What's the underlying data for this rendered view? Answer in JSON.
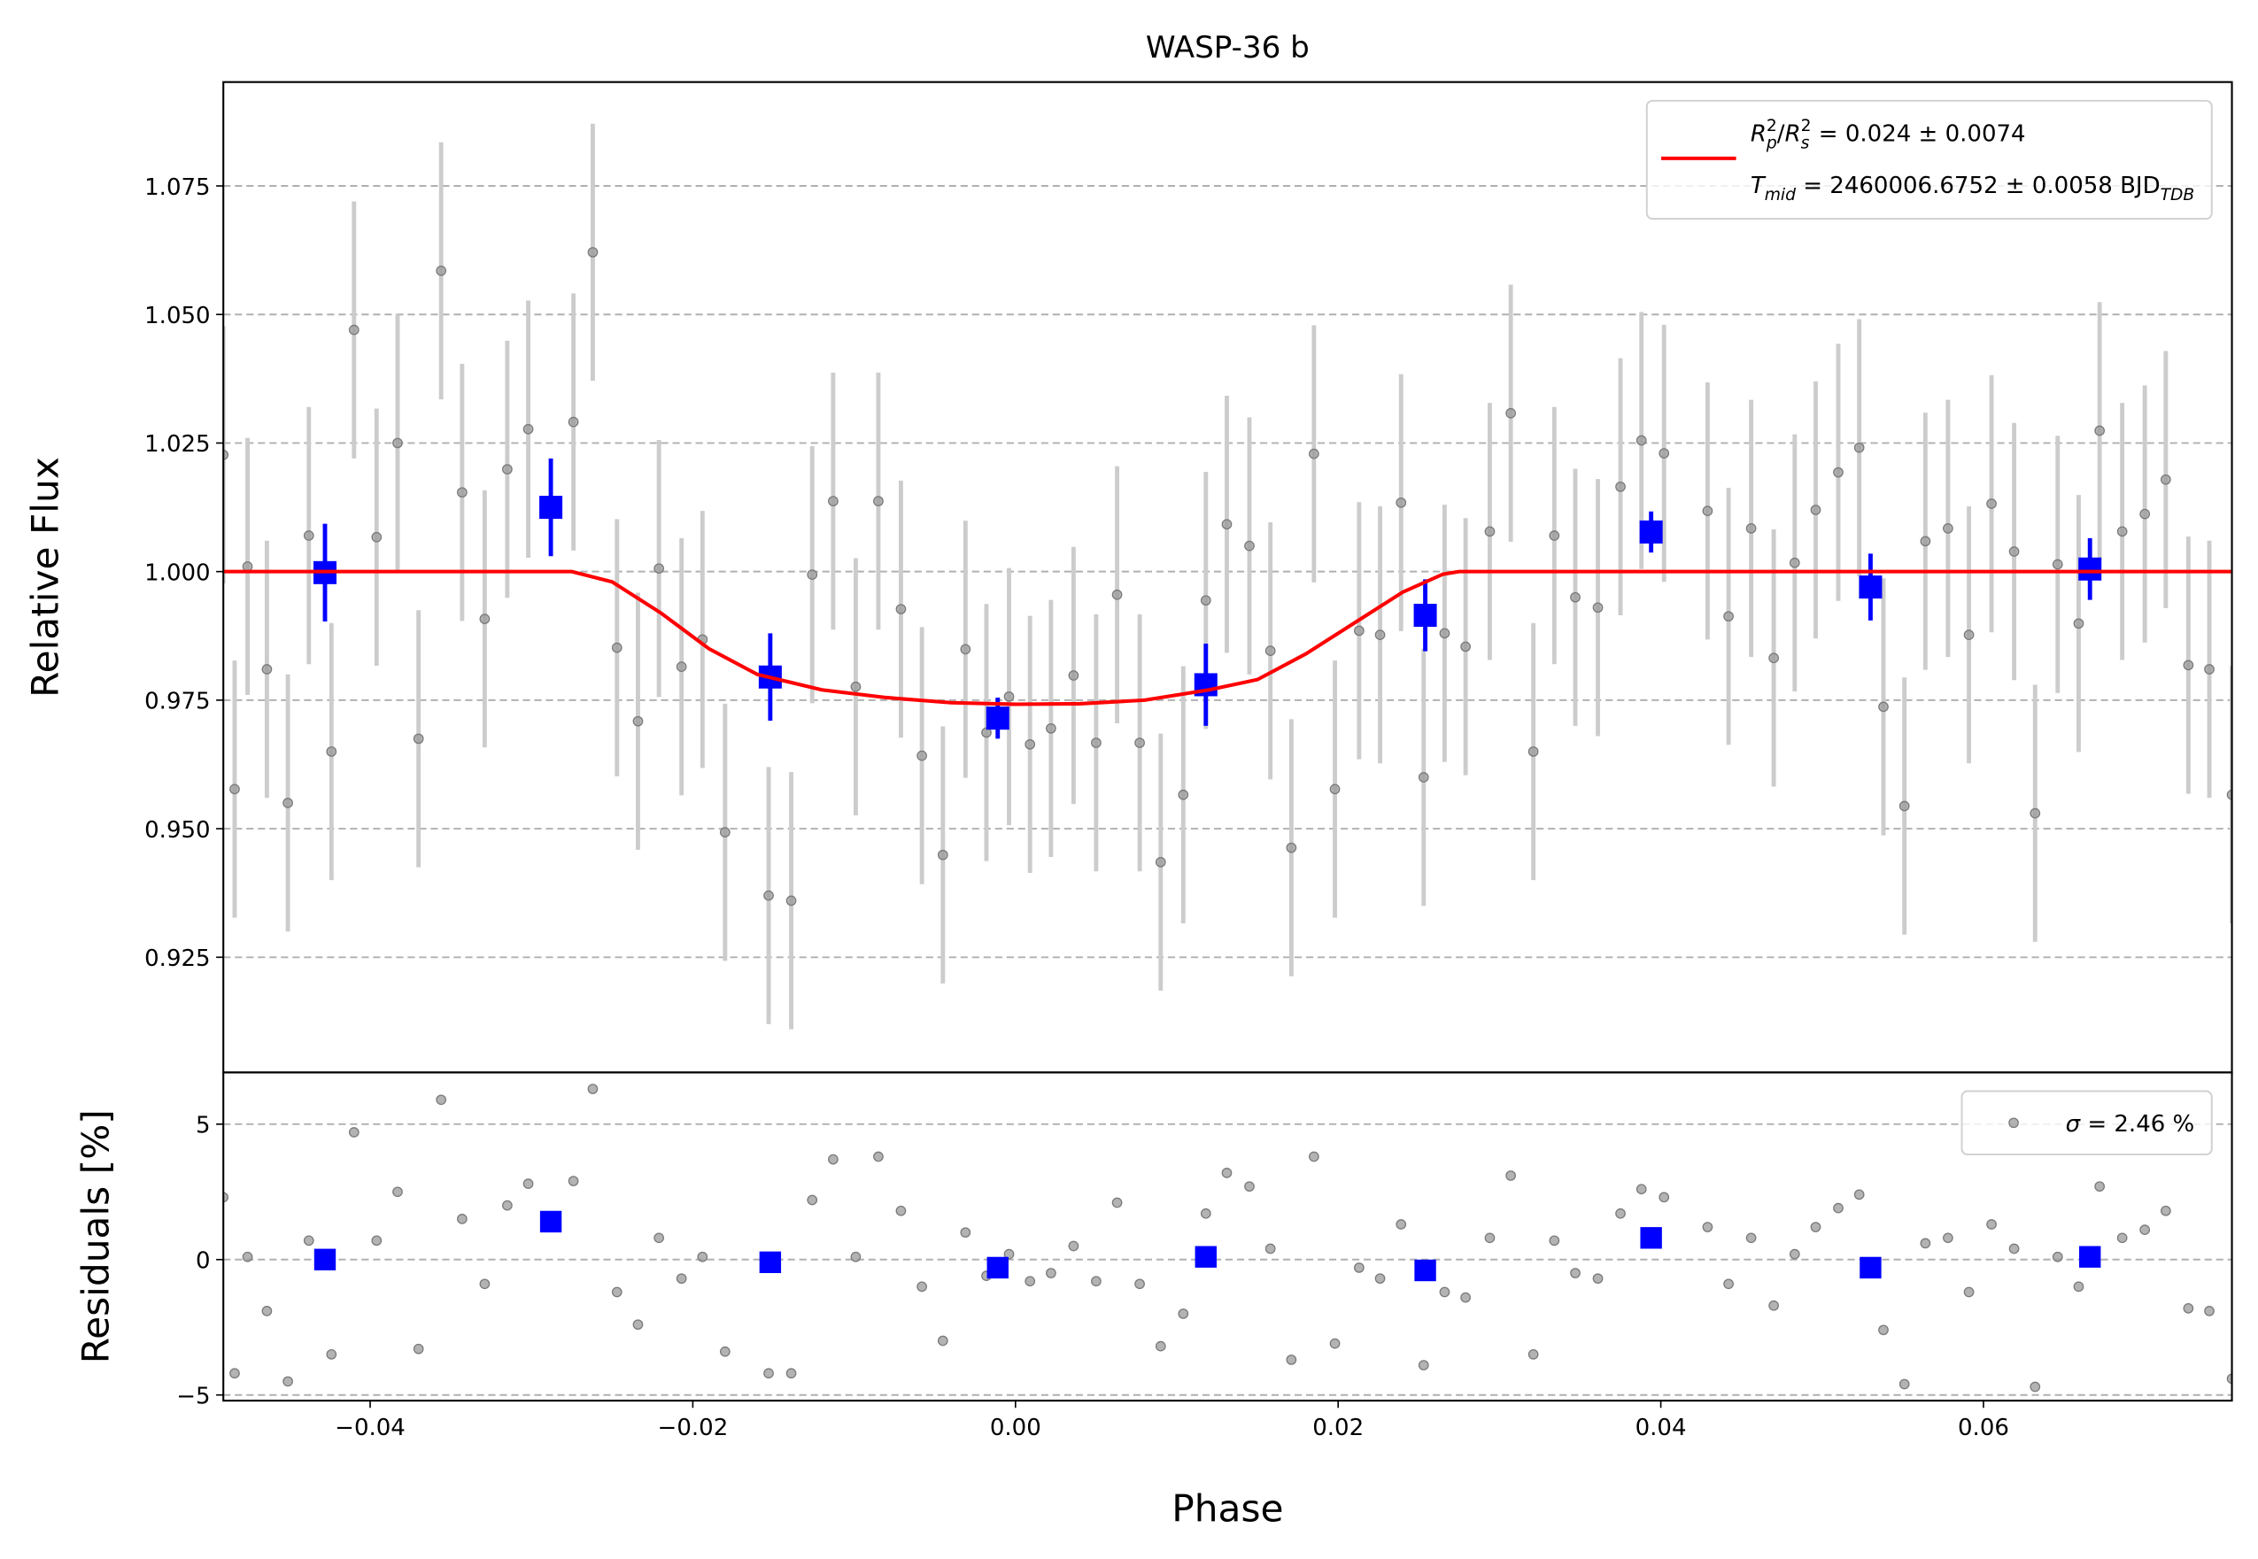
{
  "chart_data": [
    {
      "type": "scatter",
      "title": "WASP-36 b",
      "ylabel": "Relative Flux",
      "xlim": [
        -0.0491,
        0.0754
      ],
      "ylim": [
        0.9026,
        1.0952
      ],
      "yticks": [
        0.925,
        {
          "value": 0.95,
          "label": "0.950"
        },
        0.975,
        {
          "value": 1,
          "label": "1.000"
        },
        1.025,
        {
          "value": 1.05,
          "label": "1.050"
        },
        1.075
      ],
      "grid": true,
      "legend": "upper right",
      "series": [
        {
          "x": [
            -0.0491,
            -0.0484,
            -0.0476,
            -0.0464,
            -0.0451,
            -0.0438,
            -0.0424,
            -0.041,
            -0.0396,
            -0.0383,
            -0.037,
            -0.0356,
            -0.0343,
            -0.0329,
            -0.0315,
            -0.0302,
            -0.0274,
            -0.0262,
            -0.0247,
            -0.0234,
            -0.0221,
            -0.0207,
            -0.0194,
            -0.018,
            -0.0153,
            -0.0139,
            -0.0126,
            -0.0113,
            -0.0099,
            -0.0085,
            -0.0071,
            -0.0058,
            -0.0045,
            -0.0031,
            -0.0018,
            -0.0004,
            0.0009,
            0.0022,
            0.0036,
            0.005,
            0.0063,
            0.0077,
            0.009,
            0.0104,
            0.0118,
            0.0131,
            0.0145,
            0.0158,
            0.0171,
            0.0185,
            0.0198,
            0.0213,
            0.0226,
            0.0239,
            0.0253,
            0.0266,
            0.0279,
            0.0294,
            0.0307,
            0.0321,
            0.0334,
            0.0347,
            0.0361,
            0.0375,
            0.0388,
            0.0402,
            0.0429,
            0.0442,
            0.0456,
            0.047,
            0.0483,
            0.0496,
            0.051,
            0.0523,
            0.0538,
            0.0551,
            0.0564,
            0.0578,
            0.0591,
            0.0605,
            0.0619,
            0.0632,
            0.0646,
            0.0659,
            0.0672,
            0.0686,
            0.07,
            0.0713,
            0.0727,
            0.074,
            0.0754
          ],
          "values": [
            1.0227,
            0.9577,
            1.001,
            0.981,
            0.955,
            1.007,
            0.965,
            1.047,
            1.0067,
            1.025,
            0.9675,
            1.0585,
            1.0154,
            0.9908,
            1.0199,
            1.0277,
            1.0291,
            1.0621,
            0.9852,
            0.9709,
            1.0006,
            0.9815,
            0.9868,
            0.9493,
            0.937,
            0.936,
            0.9994,
            1.0137,
            0.9776,
            1.0137,
            0.9927,
            0.9642,
            0.9449,
            0.9849,
            0.9687,
            0.9757,
            0.9664,
            0.9695,
            0.9798,
            0.9667,
            0.9955,
            0.9667,
            0.9435,
            0.9566,
            0.9944,
            1.0092,
            1.005,
            0.9846,
            0.9463,
            1.0229,
            0.9577,
            0.9885,
            0.9877,
            1.0134,
            0.96,
            0.988,
            0.9854,
            1.0078,
            1.0308,
            0.965,
            1.007,
            0.995,
            0.993,
            1.0165,
            1.0255,
            1.023,
            1.0118,
            0.9913,
            1.0084,
            0.9832,
            1.0017,
            1.012,
            1.0193,
            1.0241,
            0.9737,
            0.9544,
            1.0059,
            1.0084,
            0.9877,
            1.0132,
            1.0039,
            0.953,
            1.0014,
            0.9899,
            1.0274,
            1.0078,
            1.0112,
            1.0179,
            0.9818,
            0.981,
            0.9566
          ],
          "yerr": 0.025,
          "color": "#999999",
          "errcolor": "#cccccc",
          "marker": "circle"
        },
        {
          "x": [
            -0.0428,
            -0.0288,
            -0.0152,
            -0.0011,
            0.0118,
            0.0254,
            0.0394,
            0.053,
            0.0666
          ],
          "values": [
            0.9998,
            1.0125,
            0.9795,
            0.9715,
            0.978,
            0.9915,
            1.0077,
            0.997,
            1.0005
          ],
          "yerr": [
            0.0095,
            0.0095,
            0.0085,
            0.004,
            0.008,
            0.007,
            0.004,
            0.0065,
            0.006
          ],
          "color": "#0000ff",
          "errcolor": "#0000ff",
          "marker": "square"
        },
        {
          "type": "line",
          "x": [
            -0.0491,
            -0.0275,
            -0.025,
            -0.022,
            -0.019,
            -0.016,
            -0.012,
            -0.008,
            -0.004,
            0,
            0.004,
            0.008,
            0.012,
            0.015,
            0.018,
            0.021,
            0.024,
            0.0265,
            0.0275,
            0.0754
          ],
          "values": [
            1,
            1,
            0.998,
            0.992,
            0.985,
            0.98,
            0.977,
            0.9755,
            0.9745,
            0.9742,
            0.9743,
            0.975,
            0.977,
            0.979,
            0.984,
            0.99,
            0.996,
            0.9995,
            1,
            1
          ],
          "color": "#ff0000",
          "legend": [
            [
              {
                "text": "R",
                "style": "italic"
              },
              {
                "text": "p",
                "style": "sub-italic"
              },
              {
                "text": "2",
                "style": "sup"
              },
              {
                "text": "/",
                "style": "normal"
              },
              {
                "text": "R",
                "style": "italic"
              },
              {
                "text": "s",
                "style": "sub-italic"
              },
              {
                "text": "2",
                "style": "sup"
              },
              {
                "text": " = 0.024 ± 0.0074",
                "style": "normal"
              }
            ],
            [
              {
                "text": "T",
                "style": "italic"
              },
              {
                "text": "mid",
                "style": "sub-italic"
              },
              {
                "text": " = 2460006.6752 ± 0.0058 BJD",
                "style": "normal"
              },
              {
                "text": "TDB",
                "style": "sub-italic"
              }
            ]
          ]
        }
      ]
    },
    {
      "type": "scatter",
      "xlabel": "Phase",
      "ylabel": "Residuals [%]",
      "xlim": [
        -0.0491,
        0.0754
      ],
      "ylim": [
        -5.21,
        6.91
      ],
      "xticks": [
        {
          "value": -0.04,
          "label": "−0.04"
        },
        {
          "value": -0.02,
          "label": "−0.02"
        },
        {
          "value": 0,
          "label": "0.00"
        },
        0.02,
        0.04,
        0.06
      ],
      "yticks": [
        {
          "value": -5,
          "label": "−5"
        },
        0,
        5
      ],
      "grid": true,
      "legend": "upper right",
      "series": [
        {
          "x": [
            -0.0491,
            -0.0484,
            -0.0476,
            -0.0464,
            -0.0451,
            -0.0438,
            -0.0424,
            -0.041,
            -0.0396,
            -0.0383,
            -0.037,
            -0.0356,
            -0.0343,
            -0.0329,
            -0.0315,
            -0.0302,
            -0.0274,
            -0.0262,
            -0.0247,
            -0.0234,
            -0.0221,
            -0.0207,
            -0.0194,
            -0.018,
            -0.0153,
            -0.0139,
            -0.0126,
            -0.0113,
            -0.0099,
            -0.0085,
            -0.0071,
            -0.0058,
            -0.0045,
            -0.0031,
            -0.0018,
            -0.0004,
            0.0009,
            0.0022,
            0.0036,
            0.005,
            0.0063,
            0.0077,
            0.009,
            0.0104,
            0.0118,
            0.0131,
            0.0145,
            0.0158,
            0.0171,
            0.0185,
            0.0198,
            0.0213,
            0.0226,
            0.0239,
            0.0253,
            0.0266,
            0.0279,
            0.0294,
            0.0307,
            0.0321,
            0.0334,
            0.0347,
            0.0361,
            0.0375,
            0.0388,
            0.0402,
            0.0429,
            0.0442,
            0.0456,
            0.047,
            0.0483,
            0.0496,
            0.051,
            0.0523,
            0.0538,
            0.0551,
            0.0564,
            0.0578,
            0.0591,
            0.0605,
            0.0619,
            0.0632,
            0.0646,
            0.0659,
            0.0672,
            0.0686,
            0.07,
            0.0713,
            0.0727,
            0.074,
            0.0754
          ],
          "values": [
            2.3,
            -4.2,
            0.1,
            -1.9,
            -4.5,
            0.7,
            -3.5,
            4.7,
            0.7,
            2.5,
            -3.3,
            5.9,
            1.5,
            -0.9,
            2.0,
            2.8,
            2.9,
            6.3,
            -1.2,
            -2.4,
            0.8,
            -0.7,
            0.1,
            -3.4,
            -4.2,
            -4.2,
            2.2,
            3.7,
            0.1,
            3.8,
            1.8,
            -1.0,
            -3.0,
            1.0,
            -0.6,
            0.2,
            -0.8,
            -0.5,
            0.5,
            -0.8,
            2.1,
            -0.9,
            -3.2,
            -2.0,
            1.7,
            3.2,
            2.7,
            0.4,
            -3.7,
            3.8,
            -3.1,
            -0.3,
            -0.7,
            1.3,
            -3.9,
            -1.2,
            -1.4,
            0.8,
            3.1,
            -3.5,
            0.7,
            -0.5,
            -0.7,
            1.7,
            2.6,
            2.3,
            1.2,
            -0.9,
            0.8,
            -1.7,
            0.2,
            1.2,
            1.9,
            2.4,
            -2.6,
            -4.6,
            0.6,
            0.8,
            -1.2,
            1.3,
            0.4,
            -4.7,
            0.1,
            -1.0,
            2.7,
            0.8,
            1.1,
            1.8,
            -1.8,
            -1.9,
            -4.4
          ],
          "color": "#999999",
          "marker": "circle",
          "legend": [
            [
              {
                "text": "σ",
                "style": "italic"
              },
              {
                "text": " = 2.46 %",
                "style": "normal"
              }
            ]
          ]
        },
        {
          "x": [
            -0.0428,
            -0.0288,
            -0.0152,
            -0.0011,
            0.0118,
            0.0254,
            0.0394,
            0.053,
            0.0666
          ],
          "values": [
            0.0,
            1.4,
            -0.1,
            -0.3,
            0.1,
            -0.4,
            0.8,
            -0.3,
            0.1
          ],
          "color": "#0000ff",
          "marker": "square"
        }
      ]
    }
  ]
}
